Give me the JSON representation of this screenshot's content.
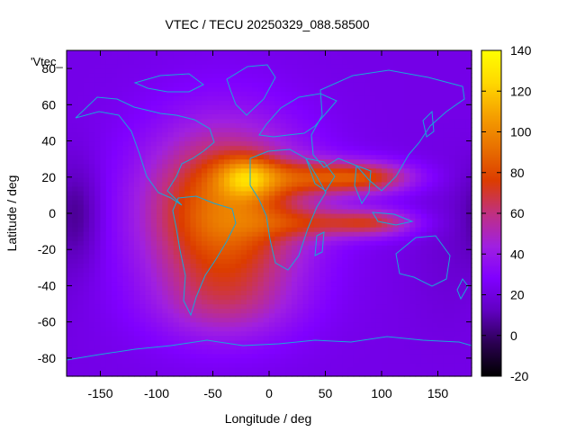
{
  "chart_data": {
    "type": "heatmap",
    "title": "VTEC / TECU 20250329_088.58500",
    "xlabel": "Longitude / deg",
    "ylabel": "Latitude / deg",
    "series_label": "'Vtec_",
    "xlim": [
      -180,
      180
    ],
    "ylim": [
      -90,
      90
    ],
    "x_ticks": [
      -150,
      -100,
      -50,
      0,
      50,
      100,
      150
    ],
    "y_ticks": [
      -80,
      -60,
      -40,
      -20,
      0,
      20,
      40,
      60,
      80
    ],
    "colorbar": {
      "range": [
        -20,
        140
      ],
      "ticks": [
        -20,
        0,
        20,
        40,
        60,
        80,
        100,
        120,
        140
      ],
      "palette": [
        "#000000",
        "#2a0050",
        "#6000c0",
        "#8000ff",
        "#a020e0",
        "#c03080",
        "#dc3c00",
        "#e87000",
        "#f5a000",
        "#ffd800",
        "#ffff00"
      ]
    },
    "background_value": 22,
    "hotspots": [
      {
        "lon": -40,
        "lat": 0,
        "value": 72,
        "sigma_lon": 50,
        "sigma_lat": 33
      },
      {
        "lon": -20,
        "lat": 20,
        "value": 38,
        "sigma_lon": 18,
        "sigma_lat": 8
      },
      {
        "lon": 40,
        "lat": 20,
        "value": 38,
        "sigma_lon": 40,
        "sigma_lat": 7
      },
      {
        "lon": 90,
        "lat": 20,
        "value": 38,
        "sigma_lon": 30,
        "sigma_lat": 6
      },
      {
        "lon": 50,
        "lat": -5,
        "value": 30,
        "sigma_lon": 45,
        "sigma_lat": 6
      },
      {
        "lon": 95,
        "lat": -5,
        "value": 28,
        "sigma_lon": 25,
        "sigma_lat": 5
      },
      {
        "lon": -40,
        "lat": -50,
        "value": 18,
        "sigma_lon": 45,
        "sigma_lat": 15
      },
      {
        "lon": -170,
        "lat": 0,
        "value": -16,
        "sigma_lon": 15,
        "sigma_lat": 20
      },
      {
        "lon": 160,
        "lat": -20,
        "value": -5,
        "sigma_lon": 25,
        "sigma_lat": 30
      }
    ]
  }
}
